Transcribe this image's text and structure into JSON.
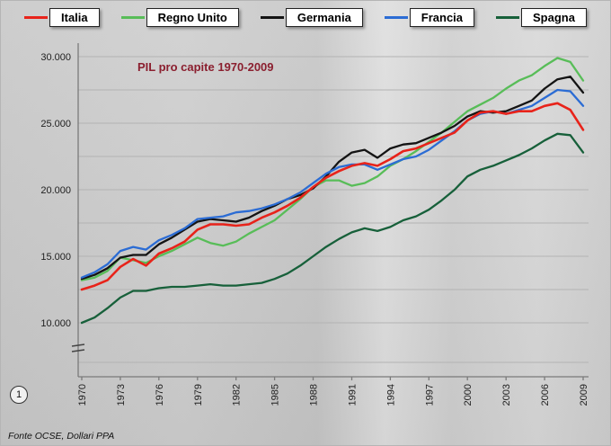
{
  "footer": {
    "page_number": "1",
    "source": "Fonte OCSE, Dollari PPA"
  },
  "chart_data": {
    "type": "line",
    "title": "PIL pro capite 1970-2009",
    "title_color": "#8b1f2f",
    "xlabel": "",
    "ylabel": "",
    "ylim": [
      10000,
      30000
    ],
    "axis_break": true,
    "grid": true,
    "legend_position": "top",
    "x": [
      1970,
      1971,
      1972,
      1973,
      1974,
      1975,
      1976,
      1977,
      1978,
      1979,
      1980,
      1981,
      1982,
      1983,
      1984,
      1985,
      1986,
      1987,
      1988,
      1989,
      1990,
      1991,
      1992,
      1993,
      1994,
      1995,
      1996,
      1997,
      1998,
      1999,
      2000,
      2001,
      2002,
      2003,
      2004,
      2005,
      2006,
      2007,
      2008,
      2009
    ],
    "x_tick_labels": [
      "1970",
      "1973",
      "1976",
      "1979",
      "1982",
      "1985",
      "1988",
      "1991",
      "1994",
      "1997",
      "2000",
      "2003",
      "2006",
      "2009"
    ],
    "y_ticks": [
      {
        "label": "10.000",
        "value": 10000
      },
      {
        "label": "15.000",
        "value": 15000
      },
      {
        "label": "20.000",
        "value": 20000
      },
      {
        "label": "25.000",
        "value": 25000
      },
      {
        "label": "30.000",
        "value": 30000
      }
    ],
    "y_gridlines": [
      10000,
      12500,
      15000,
      17500,
      20000,
      22500,
      25000,
      27500,
      30000
    ],
    "series": [
      {
        "name": "Italia",
        "color": "#e8231a",
        "values": [
          12500,
          12800,
          13200,
          14200,
          14800,
          14300,
          15200,
          15600,
          16100,
          17000,
          17400,
          17400,
          17300,
          17400,
          17900,
          18300,
          18800,
          19400,
          20200,
          20900,
          21400,
          21800,
          22000,
          21800,
          22300,
          22900,
          23100,
          23500,
          23900,
          24300,
          25200,
          25800,
          25900,
          25700,
          25900,
          25900,
          26300,
          26500,
          26000,
          24500
        ]
      },
      {
        "name": "Regno Unito",
        "color": "#58bd58",
        "values": [
          13200,
          13400,
          13900,
          14900,
          14700,
          14500,
          15000,
          15400,
          15900,
          16400,
          16000,
          15800,
          16100,
          16700,
          17200,
          17700,
          18500,
          19300,
          20200,
          20700,
          20700,
          20300,
          20500,
          21000,
          21800,
          22300,
          22900,
          23600,
          24300,
          25100,
          25900,
          26400,
          26900,
          27600,
          28200,
          28600,
          29300,
          29900,
          29600,
          28200
        ]
      },
      {
        "name": "Germania",
        "color": "#141414",
        "values": [
          13300,
          13600,
          14100,
          14900,
          15100,
          15100,
          15900,
          16400,
          17000,
          17600,
          17800,
          17700,
          17600,
          17900,
          18400,
          18800,
          19300,
          19600,
          20100,
          21000,
          22100,
          22800,
          23000,
          22400,
          23100,
          23400,
          23500,
          23900,
          24300,
          24800,
          25500,
          25900,
          25800,
          25900,
          26300,
          26700,
          27600,
          28300,
          28500,
          27300
        ]
      },
      {
        "name": "Francia",
        "color": "#2b6cd4",
        "values": [
          13400,
          13800,
          14400,
          15400,
          15700,
          15500,
          16200,
          16600,
          17100,
          17800,
          17900,
          18000,
          18300,
          18400,
          18600,
          18900,
          19300,
          19800,
          20500,
          21200,
          21700,
          21900,
          21900,
          21500,
          21900,
          22300,
          22500,
          23000,
          23700,
          24400,
          25200,
          25700,
          25900,
          25700,
          26000,
          26300,
          26900,
          27500,
          27400,
          26300
        ]
      },
      {
        "name": "Spagna",
        "color": "#17603a",
        "values": [
          10000,
          10400,
          11100,
          11900,
          12400,
          12400,
          12600,
          12700,
          12700,
          12800,
          12900,
          12800,
          12800,
          12900,
          13000,
          13300,
          13700,
          14300,
          15000,
          15700,
          16300,
          16800,
          17100,
          16900,
          17200,
          17700,
          18000,
          18500,
          19200,
          20000,
          21000,
          21500,
          21800,
          22200,
          22600,
          23100,
          23700,
          24200,
          24100,
          22800
        ]
      }
    ]
  }
}
